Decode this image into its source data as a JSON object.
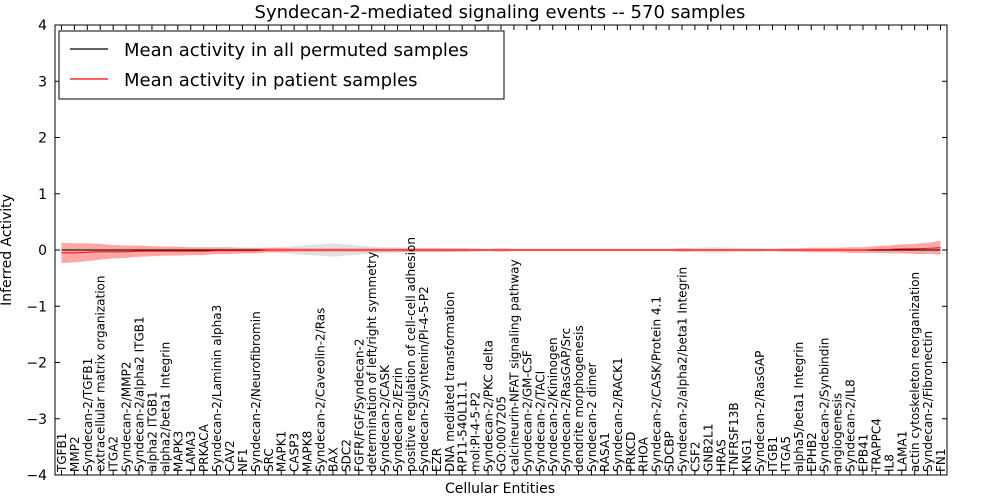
{
  "chart_data": {
    "type": "line",
    "title": "Syndecan-2-mediated signaling events -- 570 samples",
    "xlabel": "Cellular Entities",
    "ylabel": "Inferred Activity",
    "ylim": [
      -4,
      4
    ],
    "yticks": [
      "4",
      "3",
      "2",
      "1",
      "0",
      "−1",
      "−2",
      "−3",
      "−4"
    ],
    "grid": false,
    "legend_position": "top-left",
    "colors": {
      "permuted": "#000000",
      "patient": "#ff0000",
      "patient_band": "#ff8080",
      "permuted_band": "#c8c8c8"
    },
    "categories": [
      "TGFB1",
      "MMP2",
      "Syndecan-2/TGFB1",
      "extracellular matrix organization",
      "ITGA2",
      "Syndecan-2/MMP2",
      "Syndecan-2/alpha2 ITGB1",
      "alpha2 ITGB1",
      "alpha2/beta1 Integrin",
      "MAPK3",
      "LAMA3",
      "PRKACA",
      "Syndecan-2/Laminin alpha3",
      "CAV2",
      "NF1",
      "Syndecan-2/Neurofibromin",
      "SRC",
      "MAPK1",
      "CASP3",
      "MAPK8",
      "Syndecan-2/Caveolin-2/Ras",
      "BAX",
      "SDC2",
      "FGFR/FGF/Syndecan-2",
      "determination of left/right symmetry",
      "Syndecan-2/CASK",
      "Syndecan-2/Ezrin",
      "positive regulation of cell-cell adhesion",
      "Syndecan-2/Syntenin/PI-4-5-P2",
      "EZR",
      "DNA mediated transformation",
      "RP11-540L11.1",
      "mol:PI-4-5-P2",
      "Syndecan-2/PKC delta",
      "GO:0007205",
      "calcineurin-NFAT signaling pathway",
      "Syndecan-2/GM-CSF",
      "Syndecan-2/TACI",
      "Syndecan-2/Kininogen",
      "Syndecan-2/RasGAP/Src",
      "dendrite morphogenesis",
      "Syndecan-2 dimer",
      "RASA1",
      "Syndecan-2/RACK1",
      "PRKCD",
      "RHOA",
      "Syndecan-2/CASK/Protein 4.1",
      "SDCBP",
      "Syndecan-2/alpha2/beta1 Integrin",
      "CSF2",
      "GNB2L1",
      "HRAS",
      "TNFRSF13B",
      "KNG1",
      "Syndecan-2/RasGAP",
      "ITGB1",
      "ITGA5",
      "alpha5/beta1 Integrin",
      "EPHB2",
      "Syndecan-2/Synbindin",
      "angiogenesis",
      "Syndecan-2/IL8",
      "EPB41",
      "TRAPPC4",
      "IL8",
      "LAMA1",
      "actin cytoskeleton reorganization",
      "Syndecan-2/Fibronectin",
      "FN1"
    ],
    "series": [
      {
        "name": "Mean activity in all permuted samples",
        "color": "#000000",
        "values": [
          0,
          0,
          0,
          0,
          0,
          0,
          0,
          0,
          0,
          0,
          0,
          0,
          0,
          0,
          0,
          0,
          0,
          0,
          0,
          0,
          0,
          0,
          0,
          0,
          0,
          0,
          0,
          0,
          0,
          0,
          0,
          0,
          0,
          0,
          0,
          0,
          0,
          0,
          0,
          0,
          0,
          0,
          0,
          0,
          0,
          0,
          0,
          0,
          0,
          0,
          0,
          0,
          0,
          0,
          0,
          0,
          0,
          0,
          0,
          0,
          0,
          0,
          0,
          0,
          0,
          0,
          0,
          0,
          0
        ],
        "band_halfwidth": [
          0.02,
          0.02,
          0.02,
          0.02,
          0.02,
          0.03,
          0.03,
          0.03,
          0.03,
          0.04,
          0.03,
          0.03,
          0.03,
          0.03,
          0.03,
          0.03,
          0.04,
          0.05,
          0.07,
          0.09,
          0.1,
          0.12,
          0.1,
          0.08,
          0.06,
          0.05,
          0.05,
          0.04,
          0.04,
          0.04,
          0.03,
          0.03,
          0.03,
          0.02,
          0.02,
          0.02,
          0.02,
          0.02,
          0.02,
          0.02,
          0.02,
          0.02,
          0.02,
          0.02,
          0.02,
          0.02,
          0.02,
          0.02,
          0.03,
          0.04,
          0.05,
          0.05,
          0.04,
          0.03,
          0.03,
          0.02,
          0.02,
          0.02,
          0.02,
          0.02,
          0.02,
          0.02,
          0.02,
          0.02,
          0.02,
          0.02,
          0.02,
          0.02,
          0.02
        ]
      },
      {
        "name": "Mean activity in patient samples",
        "color": "#ff0000",
        "values": [
          -0.05,
          -0.05,
          -0.04,
          -0.03,
          -0.03,
          -0.03,
          -0.02,
          -0.02,
          -0.02,
          -0.02,
          -0.02,
          -0.02,
          -0.01,
          -0.01,
          -0.01,
          -0.01,
          0,
          0,
          0,
          0,
          0,
          0,
          0,
          0,
          0,
          0,
          0,
          0,
          0,
          0,
          0,
          0,
          0,
          0,
          0,
          0,
          0,
          0,
          0,
          0,
          0,
          0,
          0,
          0,
          0,
          0,
          0,
          0,
          0,
          0,
          0,
          0,
          0,
          0,
          0,
          0,
          0,
          0,
          0,
          0,
          0,
          0,
          0,
          0.01,
          0.01,
          0.02,
          0.02,
          0.03,
          0.04
        ],
        "band_halfwidth": [
          0.18,
          0.17,
          0.16,
          0.14,
          0.12,
          0.11,
          0.1,
          0.09,
          0.08,
          0.08,
          0.07,
          0.07,
          0.06,
          0.06,
          0.05,
          0.05,
          0.04,
          0.04,
          0.03,
          0.03,
          0.03,
          0.03,
          0.03,
          0.03,
          0.03,
          0.03,
          0.03,
          0.03,
          0.03,
          0.03,
          0.03,
          0.03,
          0.02,
          0.02,
          0.03,
          0.02,
          0.02,
          0.02,
          0.02,
          0.02,
          0.02,
          0.02,
          0.02,
          0.02,
          0.02,
          0.02,
          0.02,
          0.02,
          0.03,
          0.02,
          0.02,
          0.02,
          0.02,
          0.02,
          0.02,
          0.02,
          0.03,
          0.03,
          0.04,
          0.04,
          0.04,
          0.05,
          0.05,
          0.06,
          0.07,
          0.08,
          0.09,
          0.1,
          0.12
        ]
      }
    ]
  }
}
